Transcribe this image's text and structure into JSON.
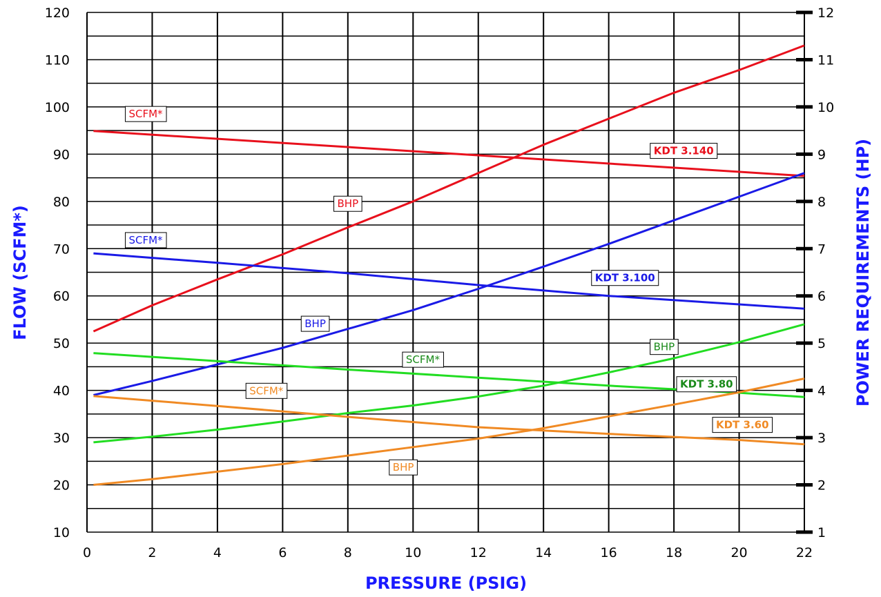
{
  "chart_data": {
    "type": "line",
    "xlabel": "PRESSURE (PSIG)",
    "ylabel": "FLOW  (SCFM*)",
    "y2label": "POWER REQUIREMENTS  (HP)",
    "xlim": [
      0,
      22
    ],
    "ylim": [
      10,
      120
    ],
    "y2lim": [
      1,
      12
    ],
    "x_ticks": [
      0,
      2,
      4,
      6,
      8,
      10,
      12,
      14,
      16,
      18,
      20,
      22
    ],
    "y_ticks": [
      10,
      20,
      30,
      40,
      50,
      60,
      70,
      80,
      90,
      100,
      110,
      120
    ],
    "y2_ticks": [
      1,
      2,
      3,
      4,
      5,
      6,
      7,
      8,
      9,
      10,
      11,
      12
    ],
    "grid": true,
    "series": [
      {
        "name": "KDT 3.140",
        "color": "#e8101c",
        "axis": "y",
        "label": "SCFM*",
        "points": [
          [
            0.2,
            94.9
          ],
          [
            22,
            85.4
          ]
        ]
      },
      {
        "name": "KDT 3.140",
        "color": "#e8101c",
        "axis": "y2",
        "label": "BHP",
        "points": [
          [
            0.2,
            5.25
          ],
          [
            2,
            5.8
          ],
          [
            4,
            6.35
          ],
          [
            6,
            6.88
          ],
          [
            8,
            7.45
          ],
          [
            10,
            8.0
          ],
          [
            12,
            8.6
          ],
          [
            14,
            9.2
          ],
          [
            16,
            9.75
          ],
          [
            18,
            10.3
          ],
          [
            20,
            10.78
          ],
          [
            22,
            11.3
          ]
        ]
      },
      {
        "name": "KDT 3.100",
        "color": "#1a1ae6",
        "axis": "y",
        "label": "SCFM*",
        "points": [
          [
            0.2,
            69.0
          ],
          [
            4,
            67.0
          ],
          [
            8,
            64.8
          ],
          [
            12,
            62.3
          ],
          [
            16,
            60.0
          ],
          [
            20,
            58.2
          ],
          [
            22,
            57.3
          ]
        ]
      },
      {
        "name": "KDT 3.100",
        "color": "#1a1ae6",
        "axis": "y2",
        "label": "BHP",
        "points": [
          [
            0.2,
            3.9
          ],
          [
            2,
            4.2
          ],
          [
            4,
            4.55
          ],
          [
            6,
            4.9
          ],
          [
            8,
            5.3
          ],
          [
            10,
            5.7
          ],
          [
            12,
            6.15
          ],
          [
            14,
            6.62
          ],
          [
            16,
            7.1
          ],
          [
            18,
            7.6
          ],
          [
            20,
            8.1
          ],
          [
            22,
            8.6
          ]
        ]
      },
      {
        "name": "KDT 3.80",
        "color": "#22dd22",
        "axis": "y",
        "label": "SCFM*",
        "points": [
          [
            0.2,
            47.9
          ],
          [
            4,
            46.2
          ],
          [
            8,
            44.4
          ],
          [
            12,
            42.7
          ],
          [
            16,
            41.0
          ],
          [
            20,
            39.5
          ],
          [
            22,
            38.6
          ]
        ]
      },
      {
        "name": "KDT 3.80",
        "color": "#22dd22",
        "axis": "y2",
        "label": "BHP",
        "points": [
          [
            0.2,
            2.9
          ],
          [
            2,
            3.02
          ],
          [
            4,
            3.17
          ],
          [
            6,
            3.34
          ],
          [
            8,
            3.52
          ],
          [
            10,
            3.68
          ],
          [
            12,
            3.87
          ],
          [
            14,
            4.1
          ],
          [
            16,
            4.38
          ],
          [
            18,
            4.68
          ],
          [
            20,
            5.02
          ],
          [
            22,
            5.4
          ]
        ]
      },
      {
        "name": "KDT 3.60",
        "color": "#f08a24",
        "axis": "y",
        "label": "SCFM*",
        "points": [
          [
            0.2,
            38.8
          ],
          [
            4,
            36.7
          ],
          [
            8,
            34.4
          ],
          [
            12,
            32.2
          ],
          [
            16,
            30.8
          ],
          [
            20,
            29.5
          ],
          [
            22,
            28.6
          ]
        ]
      },
      {
        "name": "KDT 3.60",
        "color": "#f08a24",
        "axis": "y2",
        "label": "BHP",
        "points": [
          [
            0.2,
            2.0
          ],
          [
            2,
            2.12
          ],
          [
            4,
            2.28
          ],
          [
            6,
            2.44
          ],
          [
            8,
            2.62
          ],
          [
            10,
            2.8
          ],
          [
            12,
            2.98
          ],
          [
            14,
            3.2
          ],
          [
            16,
            3.45
          ],
          [
            18,
            3.7
          ],
          [
            20,
            3.96
          ],
          [
            22,
            4.25
          ]
        ]
      }
    ],
    "annotations": [
      {
        "text": "SCFM*",
        "color": "#e8101c",
        "bold": false,
        "x": 1.8,
        "y": 98.5
      },
      {
        "text": "BHP",
        "color": "#e8101c",
        "bold": false,
        "x": 8.0,
        "y": 79.5
      },
      {
        "text": "KDT 3.140",
        "color": "#e8101c",
        "bold": true,
        "x": 18.3,
        "y": 90.7
      },
      {
        "text": "SCFM*",
        "color": "#1a1ae6",
        "bold": false,
        "x": 1.8,
        "y": 71.8
      },
      {
        "text": "KDT 3.100",
        "color": "#1a1ae6",
        "bold": true,
        "x": 16.5,
        "y": 63.8
      },
      {
        "text": "BHP",
        "color": "#1a1ae6",
        "bold": false,
        "x": 7.0,
        "y": 54.1
      },
      {
        "text": "BHP",
        "color": "#1a8a1a",
        "bold": false,
        "x": 17.7,
        "y": 49.2
      },
      {
        "text": "SCFM*",
        "color": "#1a8a1a",
        "bold": false,
        "x": 10.3,
        "y": 46.5
      },
      {
        "text": "KDT 3.80",
        "color": "#1a8a1a",
        "bold": true,
        "x": 19.0,
        "y": 41.3
      },
      {
        "text": "SCFM*",
        "color": "#f08a24",
        "bold": false,
        "x": 5.5,
        "y": 39.9
      },
      {
        "text": "KDT 3.60",
        "color": "#f08a24",
        "bold": true,
        "x": 20.1,
        "y": 32.7
      },
      {
        "text": "BHP",
        "color": "#f08a24",
        "bold": false,
        "x": 9.7,
        "y": 23.7
      }
    ]
  }
}
